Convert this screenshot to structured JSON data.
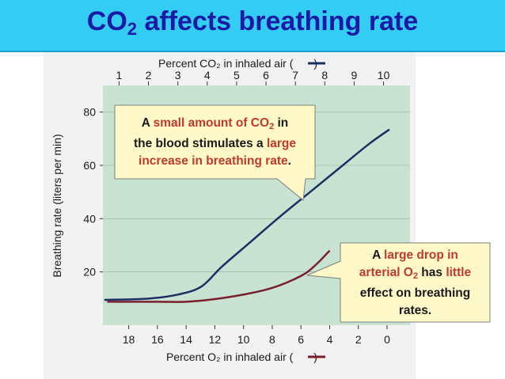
{
  "slide": {
    "title_main": "CO",
    "title_sub": "2",
    "title_rest": " affects breathing rate"
  },
  "chart_data": {
    "type": "line",
    "ylabel": "Breathing rate (liters per min)",
    "ylim": [
      0,
      90
    ],
    "yticks": [
      20,
      40,
      60,
      80
    ],
    "top_axis": {
      "label": "Percent CO₂ in inhaled air (",
      "label_end": ")",
      "ticks": [
        "1",
        "2",
        "3",
        "4",
        "5",
        "6",
        "7",
        "8",
        "9",
        "10"
      ],
      "range": [
        0.45,
        10.9
      ]
    },
    "bottom_axis": {
      "label": "Percent O₂ in inhaled air (",
      "label_end": ")",
      "ticks": [
        "18",
        "16",
        "14",
        "12",
        "10",
        "8",
        "6",
        "4",
        "2",
        "0"
      ],
      "range": [
        19.8,
        -1.6
      ]
    },
    "series": [
      {
        "name": "CO2",
        "color": "#1c2f63",
        "axis": "top",
        "points": [
          [
            0.5,
            9.5
          ],
          [
            2,
            10
          ],
          [
            3,
            11.5
          ],
          [
            3.8,
            14.5
          ],
          [
            4.5,
            22
          ],
          [
            5.5,
            31.5
          ],
          [
            6.5,
            41
          ],
          [
            7.5,
            50
          ],
          [
            8.5,
            59
          ],
          [
            9.5,
            68
          ],
          [
            10.2,
            73.5
          ]
        ]
      },
      {
        "name": "O2",
        "color": "#7a1f2e",
        "axis": "bottom",
        "points": [
          [
            19.5,
            8.8
          ],
          [
            16,
            8.8
          ],
          [
            14,
            8.8
          ],
          [
            12,
            9.8
          ],
          [
            10,
            11.5
          ],
          [
            8,
            14
          ],
          [
            6,
            18.5
          ],
          [
            5,
            22.5
          ],
          [
            4,
            28
          ]
        ]
      }
    ]
  },
  "callouts": {
    "co2": {
      "l1a": "A ",
      "l1b": "small amount of CO",
      "l1c": "2",
      "l1d": " in",
      "l2a": "the blood stimulates a ",
      "l2b": "large",
      "l3a": "increase in breathing rate",
      "l3b": "."
    },
    "o2": {
      "l1a": "A ",
      "l1b": "large drop in",
      "l2a": "arterial O",
      "l2b": "2",
      "l2c": " has ",
      "l2d": "little",
      "l3": "effect on breathing",
      "l4": "rates."
    }
  },
  "colors": {
    "title_bar": "#33ccf2",
    "title_text": "#1a1aa6",
    "plot_bg": "#c8e3d2",
    "callout_bg": "#fff8c8",
    "highlight_red": "#c0392b"
  }
}
